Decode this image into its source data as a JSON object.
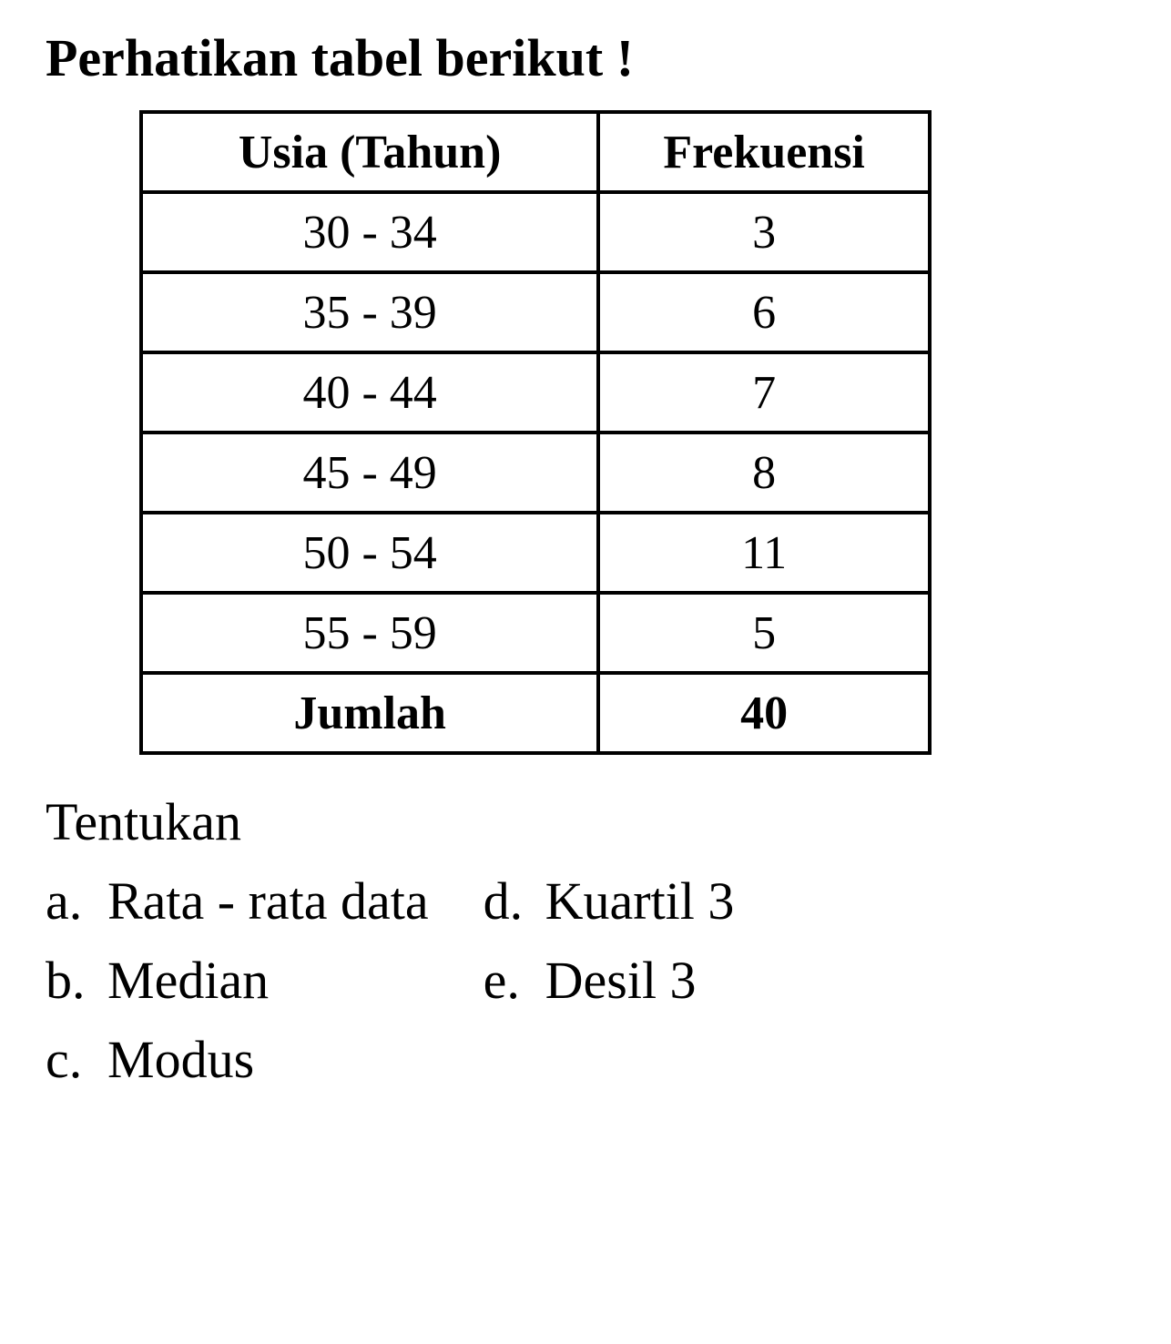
{
  "title": "Perhatikan tabel berikut !",
  "table": {
    "headers": {
      "age": "Usia (Tahun)",
      "freq": "Frekuensi"
    },
    "rows": [
      {
        "age": "30 - 34",
        "freq": "3"
      },
      {
        "age": "35 - 39",
        "freq": "6"
      },
      {
        "age": "40 - 44",
        "freq": "7"
      },
      {
        "age": "45 - 49",
        "freq": "8"
      },
      {
        "age": "50 - 54",
        "freq": "11"
      },
      {
        "age": "55 - 59",
        "freq": "5"
      }
    ],
    "footer": {
      "label": "Jumlah",
      "total": "40"
    },
    "border_color": "#000000",
    "font_size_pt": 39,
    "col_widths_pct": [
      58,
      42
    ]
  },
  "instruction": "Tentukan",
  "options": {
    "left": [
      {
        "letter": "a.",
        "text": "Rata - rata data"
      },
      {
        "letter": "b.",
        "text": "Median"
      },
      {
        "letter": "c.",
        "text": "Modus"
      }
    ],
    "right": [
      {
        "letter": "d.",
        "text": "Kuartil 3"
      },
      {
        "letter": "e.",
        "text": "Desil 3"
      }
    ]
  },
  "style": {
    "background_color": "#ffffff",
    "text_color": "#000000",
    "title_fontsize_pt": 44,
    "body_fontsize_pt": 44,
    "font_family": "Times New Roman"
  }
}
